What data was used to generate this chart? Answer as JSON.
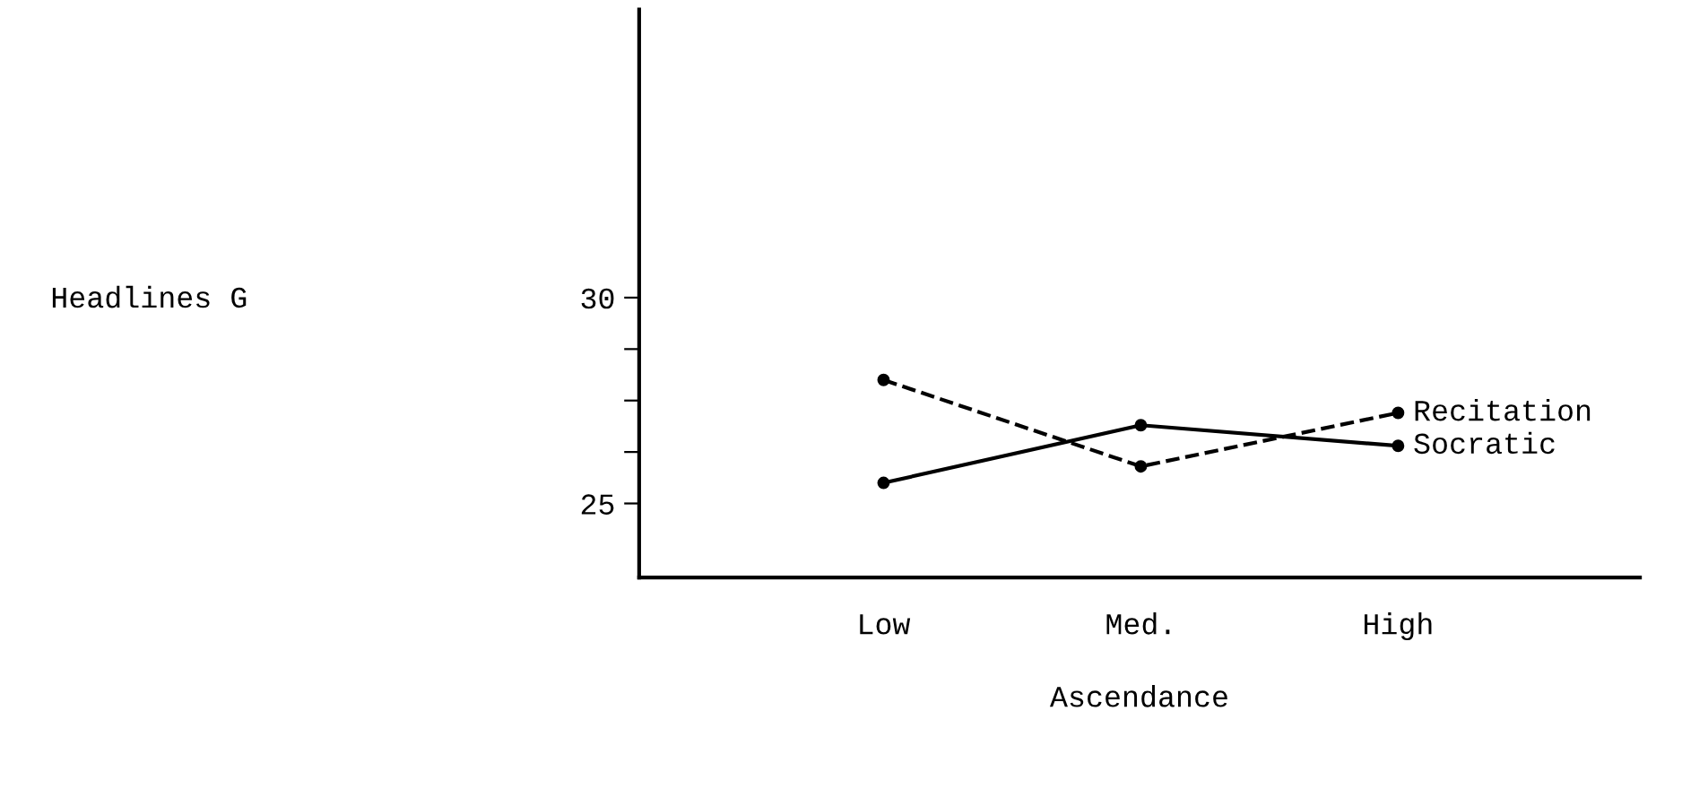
{
  "chart_data": {
    "type": "line",
    "xlabel": "Ascendance",
    "annotations": [
      "Headlines G"
    ],
    "categories": [
      "Low",
      "Med.",
      "High"
    ],
    "series": [
      {
        "name": "Recitation",
        "color": "#000000",
        "line_style": "dashed",
        "values": [
          28.0,
          25.9,
          27.2
        ]
      },
      {
        "name": "Socratic",
        "color": "#000000",
        "line_style": "solid",
        "values": [
          25.5,
          26.9,
          26.4
        ]
      }
    ],
    "ylim": [
      23.2,
      37
    ],
    "yticks": [
      25,
      {
        "value": 26.25,
        "label": null
      },
      {
        "value": 27.5,
        "label": null
      },
      {
        "value": 28.75,
        "label": null
      },
      30
    ],
    "marker": "circle",
    "grid": false,
    "legend": false
  }
}
